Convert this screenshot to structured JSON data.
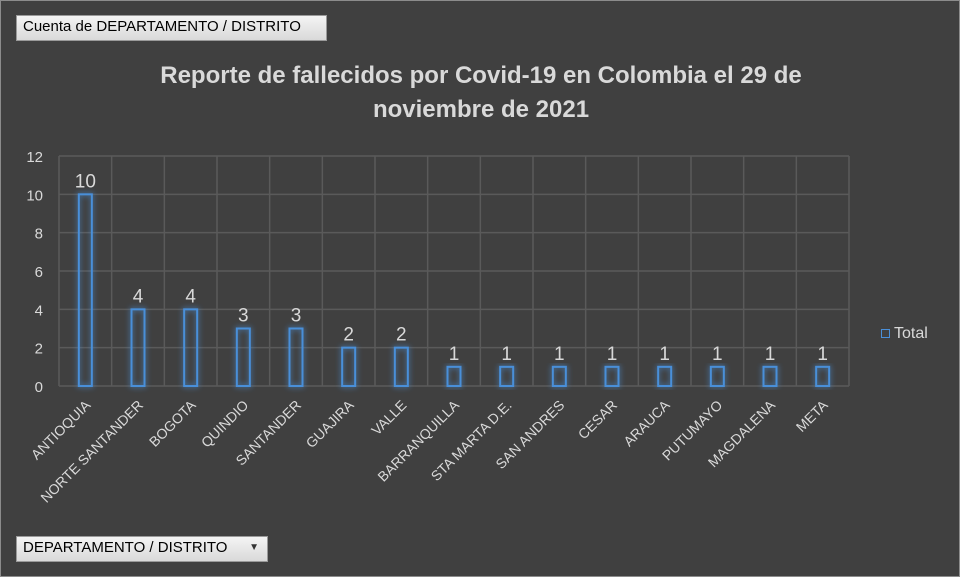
{
  "filter_buttons": {
    "report_filter_label": "Cuenta de DEPARTAMENTO / DISTRITO",
    "axis_field_label": "DEPARTAMENTO / DISTRITO"
  },
  "colors": {
    "background": "#404040",
    "bar_outline": "#4a8fd9",
    "text": "#d9d9d9",
    "grid": "#5a5a5a"
  },
  "chart_data": {
    "type": "bar",
    "title_line1": "Reporte de fallecidos por Covid-19 en Colombia el 29 de",
    "title_line2": "noviembre de 2021",
    "categories": [
      "ANTIOQUIA",
      "NORTE SANTANDER",
      "BOGOTA",
      "QUINDIO",
      "SANTANDER",
      "GUAJIRA",
      "VALLE",
      "BARRANQUILLA",
      "STA MARTA D.E.",
      "SAN ANDRES",
      "CESAR",
      "ARAUCA",
      "PUTUMAYO",
      "MAGDALENA",
      "META"
    ],
    "series": [
      {
        "name": "Total",
        "values": [
          10,
          4,
          4,
          3,
          3,
          2,
          2,
          1,
          1,
          1,
          1,
          1,
          1,
          1,
          1
        ]
      }
    ],
    "ylim": [
      0,
      12
    ],
    "yticks": [
      0,
      2,
      4,
      6,
      8,
      10,
      12
    ],
    "grid": true,
    "legend_position": "right",
    "data_labels": true
  }
}
